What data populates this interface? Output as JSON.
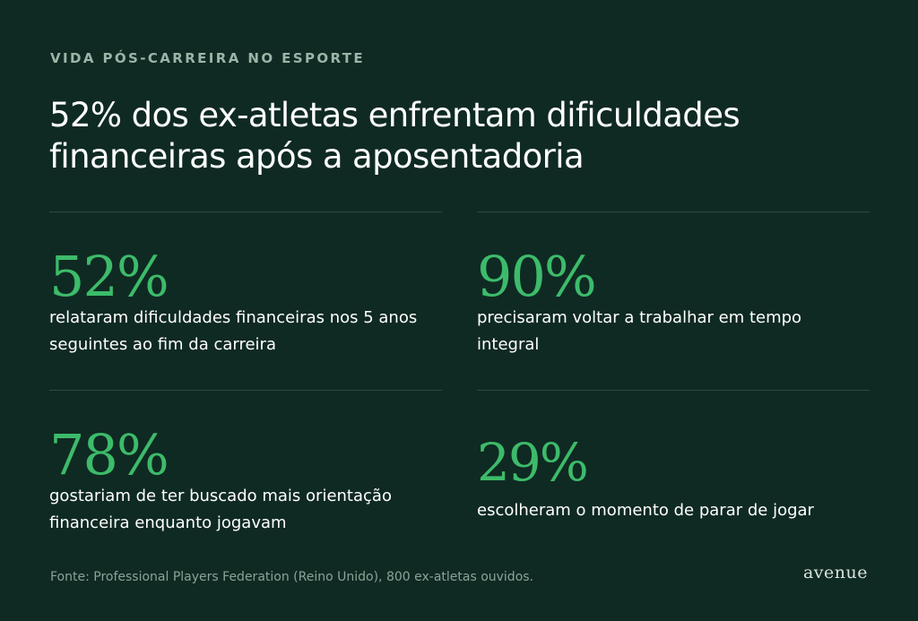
{
  "eyebrow": "VIDA PÓS-CARREIRA NO ESPORTE",
  "headline": "52% dos ex-atletas enfrentam dificuldades financeiras após a aposentadoria",
  "stats": [
    {
      "value": "52%",
      "description": "relataram dificuldades financeiras nos 5 anos seguintes ao fim da carreira"
    },
    {
      "value": "90%",
      "description": "precisaram voltar a trabalhar em tempo integral"
    },
    {
      "value": "78%",
      "description": "gostariam de ter buscado mais orientação financeira enquanto jogavam"
    },
    {
      "value": "29%",
      "description": "escolheram o momento de parar de jogar"
    }
  ],
  "source": "Fonte: Professional Players Federation (Reino Unido), 800 ex-atletas ouvidos.",
  "logo": "avenue",
  "colors": {
    "background": "#0f2a23",
    "accent": "#3dbb6a",
    "eyebrow": "#9bb5a8",
    "divider": "#2f4a41"
  }
}
